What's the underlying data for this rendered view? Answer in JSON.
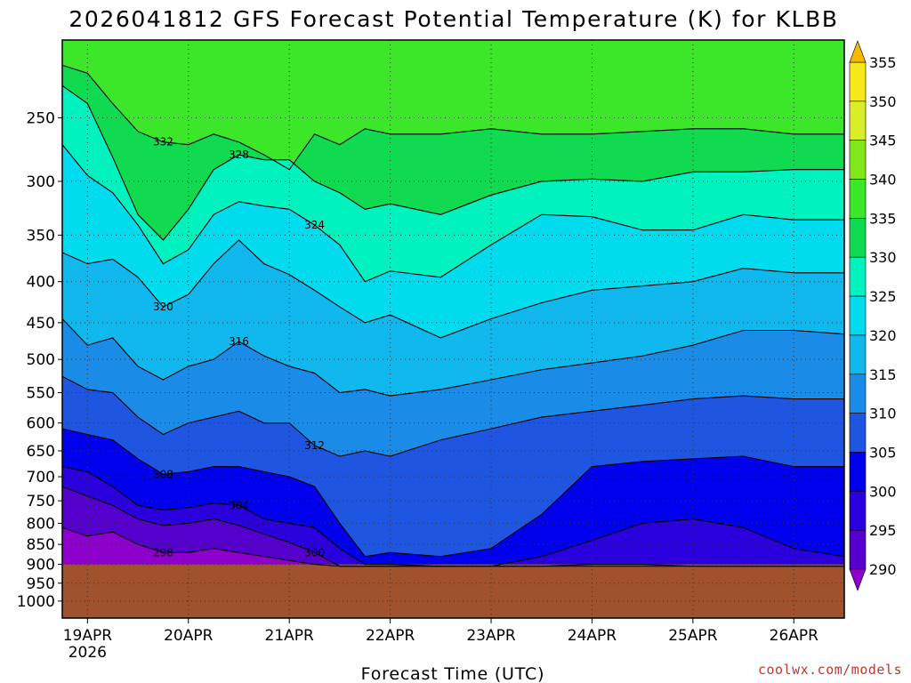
{
  "chart_data": {
    "type": "heatmap",
    "title": "2026041812 GFS Forecast Potential Temperature (K) for KLBB",
    "xlabel": "Forecast Time (UTC)",
    "credit": "coolwx.com/models",
    "x_ticks": [
      "19APR",
      "20APR",
      "21APR",
      "22APR",
      "23APR",
      "24APR",
      "25APR",
      "26APR"
    ],
    "x_sublabel": "2026",
    "x_range_hours": [
      -6,
      180
    ],
    "y_ticks": [
      250,
      300,
      350,
      400,
      450,
      500,
      550,
      600,
      650,
      700,
      750,
      800,
      850,
      900,
      950,
      1000
    ],
    "y_range_hpa": [
      200,
      1050
    ],
    "y_scale": "log-pressure",
    "grid": true,
    "colorbar": {
      "ticks": [
        290,
        295,
        300,
        305,
        310,
        315,
        320,
        325,
        330,
        335,
        340,
        345,
        350,
        355
      ],
      "extend": "both",
      "colors": {
        "285": "#8e00cc",
        "290": "#5500cc",
        "295": "#2a00dd",
        "300": "#0000ee",
        "305": "#1e56e2",
        "310": "#1a8ce8",
        "315": "#10b8ee",
        "320": "#00dcee",
        "325": "#00f2be",
        "330": "#10da50",
        "335": "#3ce628",
        "340": "#80e818",
        "345": "#d8ee28",
        "350": "#f8e818",
        "355": "#f8b800"
      }
    },
    "ground_color": "#a0522d",
    "ground_level_hpa": 900,
    "contour_interval_k": 4,
    "series": [
      {
        "name": "332",
        "y": [
          215,
          220,
          240,
          260,
          268,
          270,
          262,
          268,
          278,
          290,
          262,
          270,
          258,
          262,
          262,
          258,
          262,
          262,
          260,
          258,
          258,
          262,
          262
        ]
      },
      {
        "name": "328",
        "y": [
          228,
          240,
          280,
          330,
          355,
          325,
          290,
          278,
          282,
          282,
          300,
          310,
          325,
          320,
          330,
          312,
          300,
          298,
          300,
          292,
          292,
          290,
          290
        ]
      },
      {
        "name": "324",
        "y": [
          270,
          295,
          310,
          340,
          380,
          365,
          330,
          318,
          322,
          325,
          340,
          360,
          400,
          388,
          395,
          360,
          330,
          332,
          345,
          345,
          330,
          335,
          335
        ]
      },
      {
        "name": "320",
        "y": [
          368,
          380,
          375,
          395,
          430,
          415,
          380,
          355,
          380,
          392,
          410,
          430,
          450,
          440,
          470,
          445,
          425,
          410,
          405,
          400,
          385,
          390,
          390
        ]
      },
      {
        "name": "316",
        "y": [
          445,
          480,
          470,
          510,
          530,
          510,
          500,
          475,
          495,
          510,
          520,
          550,
          545,
          555,
          545,
          530,
          515,
          505,
          495,
          480,
          460,
          460,
          465
        ]
      },
      {
        "name": "312",
        "y": [
          525,
          545,
          550,
          590,
          620,
          600,
          590,
          580,
          600,
          600,
          640,
          660,
          650,
          660,
          630,
          610,
          590,
          580,
          570,
          560,
          555,
          560,
          560
        ]
      },
      {
        "name": "308",
        "y": [
          610,
          620,
          630,
          665,
          695,
          690,
          680,
          680,
          690,
          700,
          720,
          800,
          880,
          870,
          880,
          860,
          780,
          680,
          670,
          665,
          660,
          680,
          680
        ]
      },
      {
        "name": "304",
        "y": [
          680,
          690,
          720,
          760,
          770,
          765,
          755,
          760,
          790,
          800,
          810,
          860,
          900,
          900,
          905,
          905,
          880,
          840,
          800,
          790,
          810,
          860,
          880
        ]
      },
      {
        "name": "300",
        "y": [
          720,
          740,
          760,
          790,
          805,
          800,
          790,
          805,
          825,
          845,
          870,
          905,
          905,
          905,
          905,
          905,
          905,
          900,
          900,
          905,
          905,
          905,
          905
        ]
      },
      {
        "name": "298",
        "y": [
          810,
          830,
          820,
          850,
          870,
          870,
          860,
          870,
          880,
          890,
          900,
          905,
          905,
          905,
          905,
          905,
          905,
          905,
          905,
          905,
          905,
          905,
          905
        ]
      }
    ],
    "x_hours": [
      -6,
      0,
      6,
      12,
      18,
      24,
      30,
      36,
      42,
      48,
      54,
      60,
      66,
      72,
      84,
      96,
      108,
      120,
      132,
      144,
      156,
      168,
      180
    ]
  }
}
